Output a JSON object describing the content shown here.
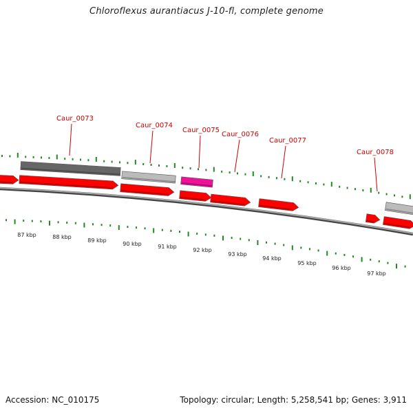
{
  "title": "Chloroflexus aurantiacus J-10-fl, complete genome",
  "footer": {
    "accession_label": "Accession: ",
    "accession": "NC_010175",
    "genome_info": "Topology: circular; Length: 5,258,541 bp; Genes: 3,911"
  },
  "colors": {
    "backbone": "#7a7a7a",
    "forward_gene": "#ff0000",
    "gene_dark": "#666666",
    "gene_light": "#bbbbbb",
    "gene_magenta": "#ee1199",
    "label": "#cc0000",
    "tick": "#228822",
    "scale_text": "#222222"
  },
  "scale_labels": [
    "87 kbp",
    "88 kbp",
    "89 kbp",
    "90 kbp",
    "91 kbp",
    "92 kbp",
    "93 kbp",
    "94 kbp",
    "95 kbp",
    "96 kbp",
    "97 kbp"
  ],
  "gene_labels": [
    "Caur_0073",
    "Caur_0074",
    "Caur_0075",
    "Caur_0076",
    "Caur_0077",
    "Caur_0078"
  ]
}
